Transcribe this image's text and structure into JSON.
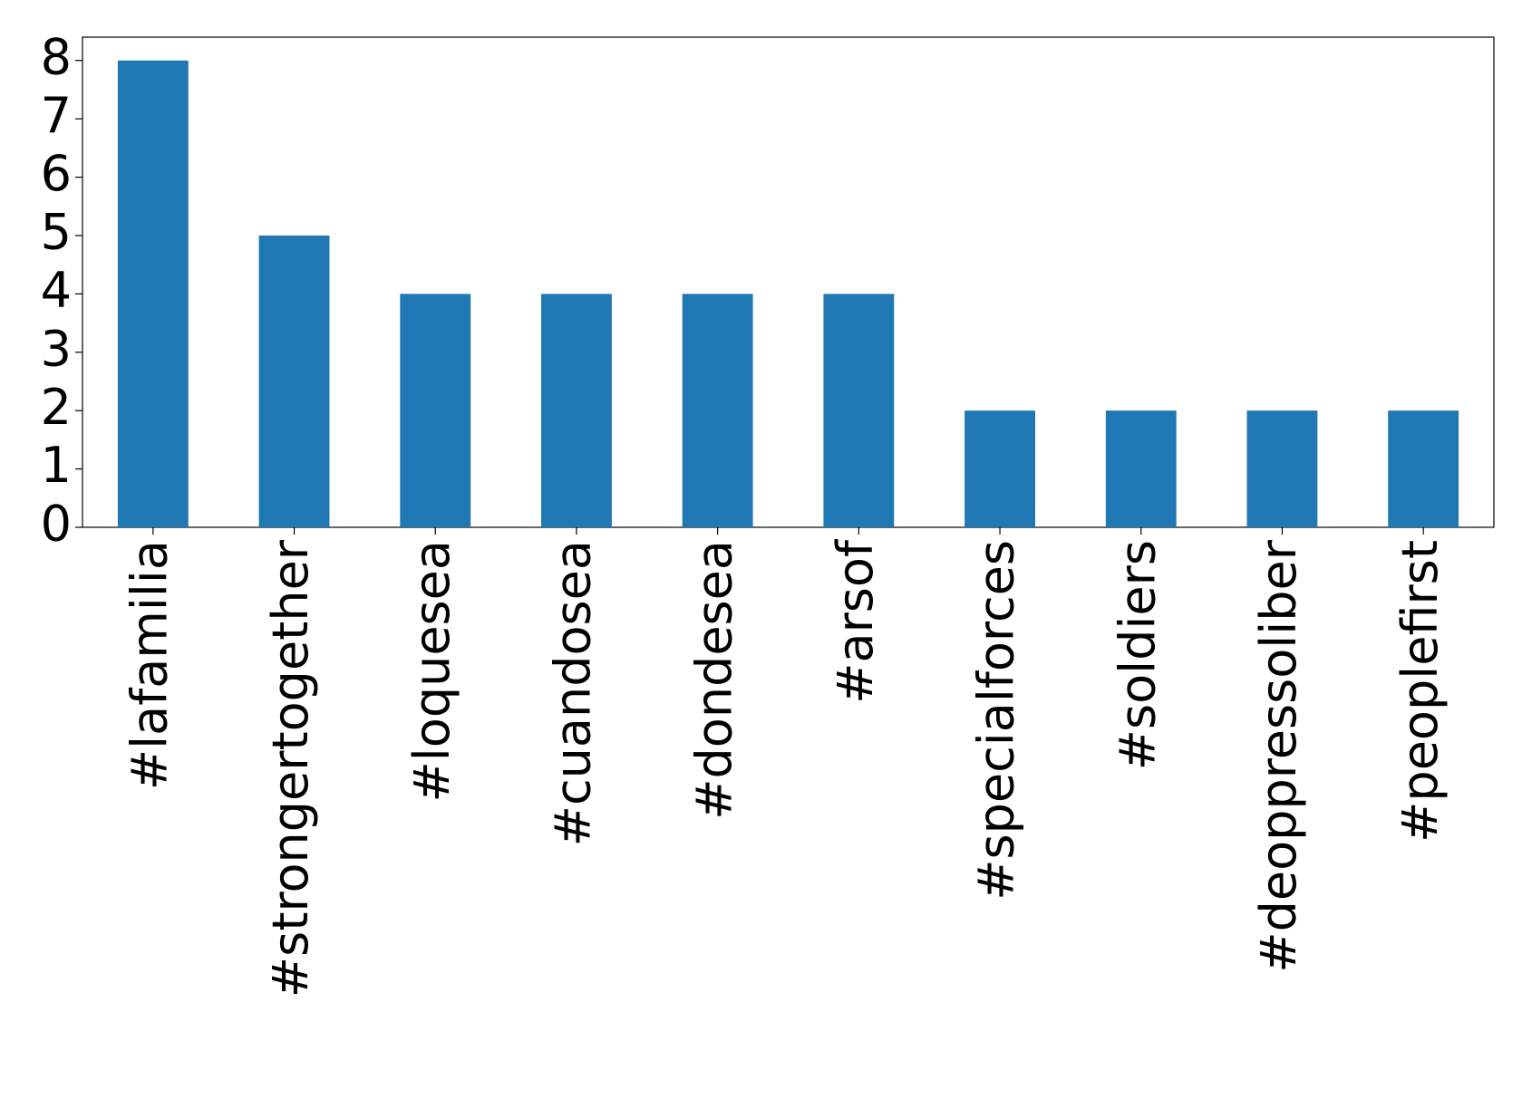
{
  "chart_data": {
    "type": "bar",
    "categories": [
      "#lafamilia",
      "#strongertogether",
      "#loquesea",
      "#cuandosea",
      "#dondesea",
      "#arsof",
      "#specialforces",
      "#soldiers",
      "#deoppressoliber",
      "#peoplefirst"
    ],
    "values": [
      8,
      5,
      4,
      4,
      4,
      4,
      2,
      2,
      2,
      2
    ],
    "color": "#1f77b4",
    "ylim": [
      0,
      8.4
    ],
    "yticks": [
      0,
      1,
      2,
      3,
      4,
      5,
      6,
      7,
      8
    ],
    "grid": false
  }
}
